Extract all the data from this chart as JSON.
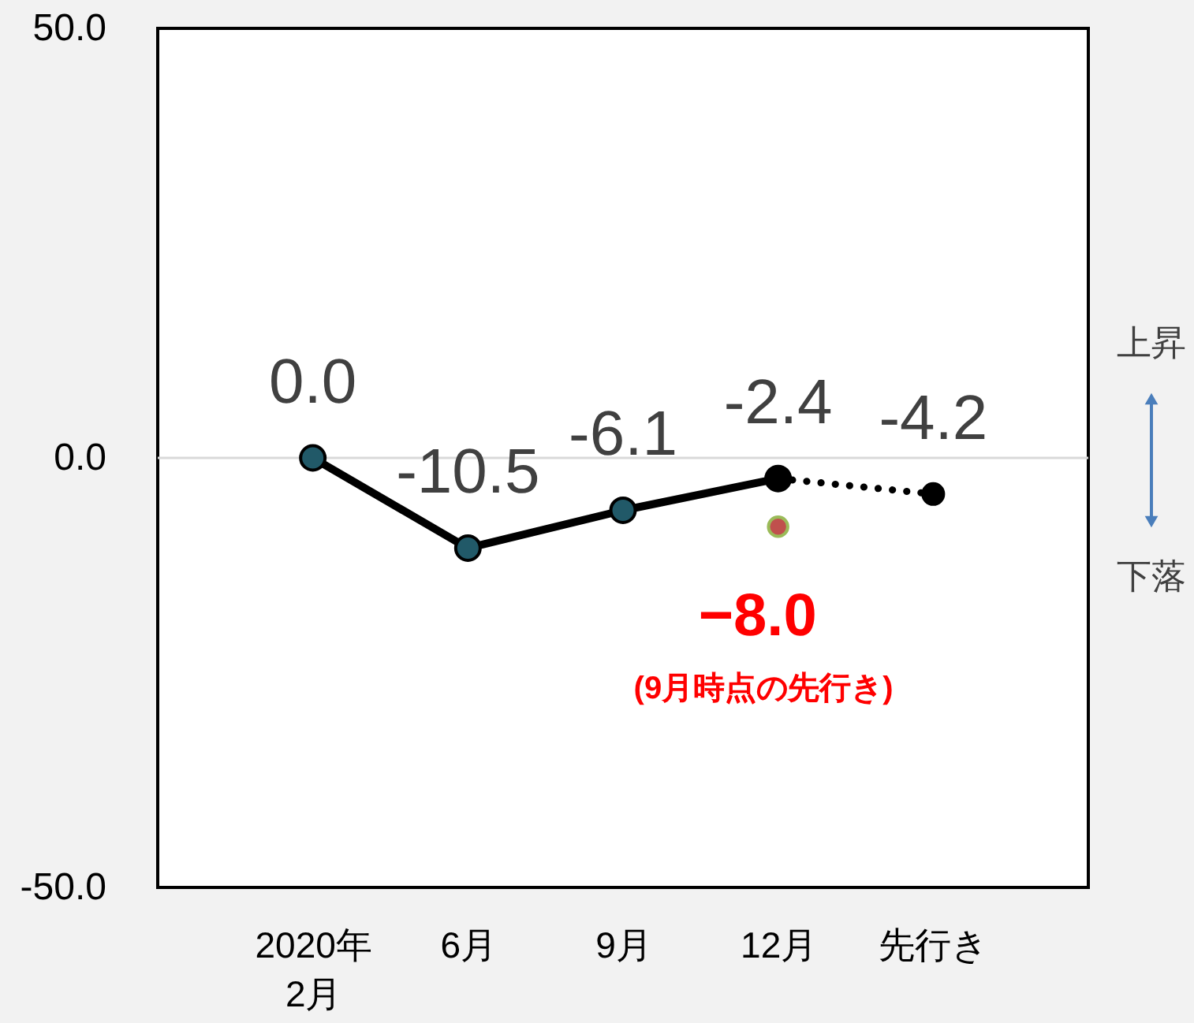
{
  "chart_data": {
    "type": "line",
    "categories": [
      "2020年\n2月",
      "6月",
      "9月",
      "12月",
      "先行き"
    ],
    "ylim": [
      -50,
      50
    ],
    "yticks": [
      {
        "value": -50,
        "label": "-50.0"
      },
      {
        "value": 0,
        "label": "0.0"
      },
      {
        "value": 50,
        "label": "50.0"
      }
    ],
    "marker": "circle",
    "ref_lines": [
      {
        "axis": "y",
        "value": 0,
        "color": "#d9d9d9"
      }
    ],
    "series": [
      {
        "color": "#000000",
        "values": [
          0.0,
          -10.5,
          -6.1,
          -2.4,
          null
        ],
        "value_labels": [
          "0.0",
          "-10.5",
          "-6.1",
          "-2.4",
          null
        ]
      },
      {
        "color": "#000000",
        "line_style": "dotted",
        "values": [
          null,
          null,
          null,
          -2.4,
          -4.2
        ],
        "value_labels": [
          null,
          null,
          null,
          null,
          "-4.2"
        ]
      },
      {
        "type": "scatter",
        "color": "#c0504d",
        "values": [
          null,
          null,
          null,
          -8.0,
          null
        ],
        "value_labels": [
          null,
          null,
          null,
          "−8.0",
          null
        ]
      }
    ],
    "annotations": [
      "(9月時点の先行き)",
      "上昇",
      "下落"
    ]
  }
}
